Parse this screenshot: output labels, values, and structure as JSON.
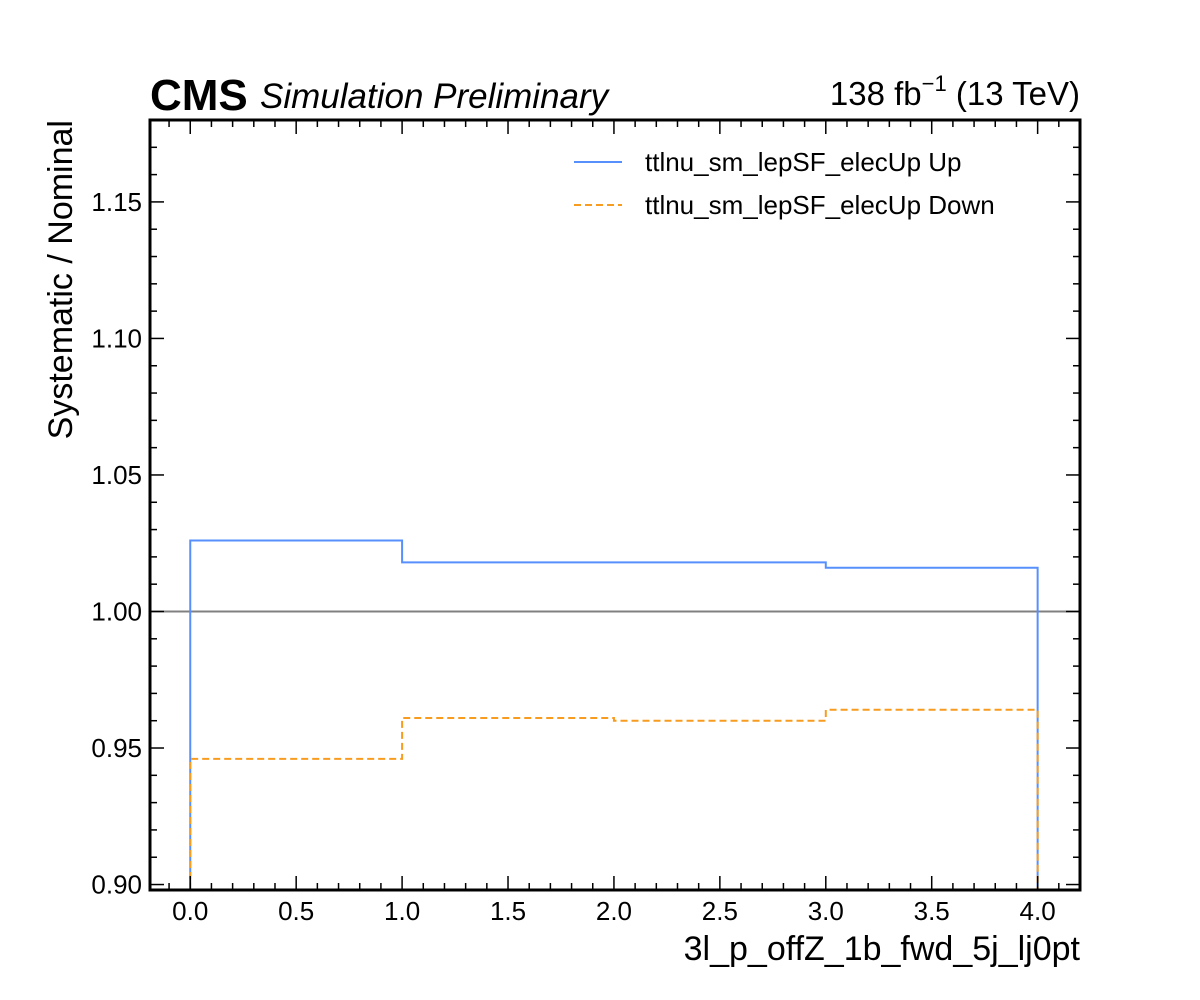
{
  "header": {
    "experiment": "CMS",
    "status": "Simulation Preliminary",
    "lumi_value": "138 fb",
    "lumi_exp": "−1",
    "lumi_energy": "(13 TeV)"
  },
  "chart_data": {
    "type": "line",
    "drawstyle": "steps",
    "xlabel": "3l_p_offZ_1b_fwd_5j_lj0pt",
    "ylabel": "Systematic / Nominal",
    "xlim": [
      -0.19,
      4.2
    ],
    "ylim": [
      0.898,
      1.18
    ],
    "xticks": [
      0.0,
      0.5,
      1.0,
      1.5,
      2.0,
      2.5,
      3.0,
      3.5,
      4.0
    ],
    "xtick_labels": [
      "0.0",
      "0.5",
      "1.0",
      "1.5",
      "2.0",
      "2.5",
      "3.0",
      "3.5",
      "4.0"
    ],
    "yticks": [
      0.9,
      0.95,
      1.0,
      1.05,
      1.1,
      1.15
    ],
    "ytick_labels": [
      "0.90",
      "0.95",
      "1.00",
      "1.05",
      "1.10",
      "1.15"
    ],
    "bin_edges": [
      0,
      1,
      2,
      3,
      4
    ],
    "reference_line": {
      "y": 1.0,
      "color": "#808080"
    },
    "legend_position": "top-right",
    "series": [
      {
        "name": "ttlnu_sm_lepSF_elecUp Up",
        "color": "#5790fc",
        "style": "solid",
        "values": [
          1.026,
          1.018,
          1.018,
          1.016
        ]
      },
      {
        "name": "ttlnu_sm_lepSF_elecUp Down",
        "color": "#f89c20",
        "style": "dashed",
        "values": [
          0.946,
          0.961,
          0.96,
          0.964
        ]
      }
    ],
    "grid": false
  }
}
